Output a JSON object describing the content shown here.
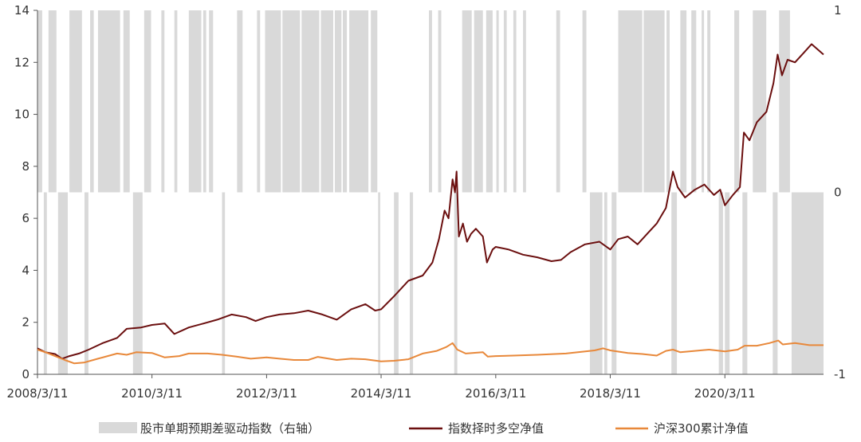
{
  "chart_data": {
    "type": "line",
    "title": "",
    "xlabel": "",
    "ylabel": "",
    "x_range": [
      "2008-03-11",
      "2021-11-30"
    ],
    "x_tick_labels": [
      "2008/3/11",
      "2010/3/11",
      "2012/3/11",
      "2014/3/11",
      "2016/3/11",
      "2018/3/11",
      "2020/3/11"
    ],
    "y_left": {
      "ylim": [
        0,
        14
      ],
      "ticks": [
        "0",
        "2",
        "4",
        "6",
        "8",
        "10",
        "12",
        "14"
      ]
    },
    "y_right": {
      "ylim": [
        -1,
        1
      ],
      "ticks": [
        "-1",
        "0",
        "1"
      ]
    },
    "grid": false,
    "legend_position": "bottom",
    "colors": {
      "signal": "#d9d9d9",
      "timing": "#6b0f0f",
      "hs300": "#e8883a"
    },
    "signal_series": {
      "name": "股市单期预期差驱动指数（右轴）",
      "type": "bar",
      "axis": "right",
      "values_note_free": true,
      "periods": [
        {
          "start": "2008-03-11",
          "end": "2008-04-10",
          "value": 1
        },
        {
          "start": "2008-04-20",
          "end": "2008-05-10",
          "value": -1
        },
        {
          "start": "2008-05-20",
          "end": "2008-07-10",
          "value": 1
        },
        {
          "start": "2008-07-20",
          "end": "2008-09-20",
          "value": -1
        },
        {
          "start": "2008-10-01",
          "end": "2008-12-20",
          "value": 1
        },
        {
          "start": "2009-01-05",
          "end": "2009-01-30",
          "value": -1
        },
        {
          "start": "2009-02-10",
          "end": "2009-03-05",
          "value": 1
        },
        {
          "start": "2009-04-01",
          "end": "2009-08-20",
          "value": 1
        },
        {
          "start": "2009-09-10",
          "end": "2009-10-20",
          "value": 1
        },
        {
          "start": "2009-11-10",
          "end": "2010-01-10",
          "value": -1
        },
        {
          "start": "2010-01-20",
          "end": "2010-03-05",
          "value": 1
        },
        {
          "start": "2010-05-10",
          "end": "2010-05-30",
          "value": 1
        },
        {
          "start": "2010-08-01",
          "end": "2010-08-20",
          "value": 1
        },
        {
          "start": "2010-11-01",
          "end": "2011-01-20",
          "value": 1
        },
        {
          "start": "2011-02-01",
          "end": "2011-02-20",
          "value": 1
        },
        {
          "start": "2011-03-10",
          "end": "2011-04-05",
          "value": 1
        },
        {
          "start": "2011-06-01",
          "end": "2011-06-20",
          "value": -1
        },
        {
          "start": "2011-09-05",
          "end": "2011-10-10",
          "value": 1
        },
        {
          "start": "2012-01-10",
          "end": "2012-01-30",
          "value": 1
        },
        {
          "start": "2012-03-01",
          "end": "2012-06-10",
          "value": 1
        },
        {
          "start": "2012-06-20",
          "end": "2012-10-10",
          "value": 1
        },
        {
          "start": "2012-10-20",
          "end": "2013-02-10",
          "value": 1
        },
        {
          "start": "2013-02-20",
          "end": "2013-05-10",
          "value": 1
        },
        {
          "start": "2013-05-20",
          "end": "2013-07-01",
          "value": 1
        },
        {
          "start": "2013-07-10",
          "end": "2013-08-05",
          "value": 1
        },
        {
          "start": "2013-08-20",
          "end": "2013-12-20",
          "value": 1
        },
        {
          "start": "2014-01-05",
          "end": "2014-02-15",
          "value": 1
        },
        {
          "start": "2014-02-20",
          "end": "2014-03-05",
          "value": -1
        },
        {
          "start": "2014-06-01",
          "end": "2014-06-30",
          "value": -1
        },
        {
          "start": "2014-09-10",
          "end": "2014-10-01",
          "value": -1
        },
        {
          "start": "2015-01-10",
          "end": "2015-01-30",
          "value": 1
        },
        {
          "start": "2015-03-10",
          "end": "2015-03-30",
          "value": 1
        },
        {
          "start": "2015-06-20",
          "end": "2015-07-10",
          "value": -1
        },
        {
          "start": "2015-08-10",
          "end": "2015-10-10",
          "value": 1
        },
        {
          "start": "2015-10-25",
          "end": "2015-12-20",
          "value": 1
        },
        {
          "start": "2016-01-10",
          "end": "2016-02-20",
          "value": 1
        },
        {
          "start": "2016-03-15",
          "end": "2016-03-30",
          "value": 1
        },
        {
          "start": "2016-05-01",
          "end": "2016-05-20",
          "value": 1
        },
        {
          "start": "2016-07-01",
          "end": "2016-07-20",
          "value": 1
        },
        {
          "start": "2016-09-01",
          "end": "2016-09-20",
          "value": 1
        },
        {
          "start": "2017-04-01",
          "end": "2017-04-25",
          "value": 1
        },
        {
          "start": "2017-09-15",
          "end": "2017-10-10",
          "value": 1
        },
        {
          "start": "2017-11-01",
          "end": "2018-01-20",
          "value": -1
        },
        {
          "start": "2018-02-01",
          "end": "2018-02-20",
          "value": -1
        },
        {
          "start": "2018-03-20",
          "end": "2018-04-20",
          "value": -1
        },
        {
          "start": "2018-05-01",
          "end": "2018-10-01",
          "value": 1
        },
        {
          "start": "2018-10-10",
          "end": "2019-02-20",
          "value": 1
        },
        {
          "start": "2019-03-05",
          "end": "2019-03-25",
          "value": 1
        },
        {
          "start": "2019-04-05",
          "end": "2019-05-10",
          "value": -1
        },
        {
          "start": "2019-06-01",
          "end": "2019-07-10",
          "value": 1
        },
        {
          "start": "2019-08-10",
          "end": "2019-09-10",
          "value": 1
        },
        {
          "start": "2019-10-15",
          "end": "2019-10-30",
          "value": 1
        },
        {
          "start": "2019-11-20",
          "end": "2019-12-10",
          "value": 1
        },
        {
          "start": "2020-02-01",
          "end": "2020-02-28",
          "value": -1
        },
        {
          "start": "2020-03-11",
          "end": "2020-04-10",
          "value": -1
        },
        {
          "start": "2020-05-10",
          "end": "2020-06-10",
          "value": 1
        },
        {
          "start": "2020-07-01",
          "end": "2020-08-01",
          "value": -1
        },
        {
          "start": "2020-09-05",
          "end": "2020-11-30",
          "value": 1
        },
        {
          "start": "2021-01-10",
          "end": "2021-02-10",
          "value": -1
        },
        {
          "start": "2021-02-20",
          "end": "2021-04-30",
          "value": 1
        },
        {
          "start": "2021-05-10",
          "end": "2021-11-30",
          "value": -1
        }
      ]
    },
    "series": [
      {
        "name": "指数择时多空净值",
        "axis": "left",
        "points": [
          [
            "2008-03-11",
            1.0
          ],
          [
            "2008-05-01",
            0.85
          ],
          [
            "2008-07-01",
            0.78
          ],
          [
            "2008-08-15",
            0.6
          ],
          [
            "2008-10-01",
            0.7
          ],
          [
            "2008-12-01",
            0.8
          ],
          [
            "2009-02-01",
            0.95
          ],
          [
            "2009-05-01",
            1.2
          ],
          [
            "2009-08-01",
            1.4
          ],
          [
            "2009-10-01",
            1.75
          ],
          [
            "2010-01-01",
            1.8
          ],
          [
            "2010-03-11",
            1.9
          ],
          [
            "2010-06-01",
            1.95
          ],
          [
            "2010-08-01",
            1.55
          ],
          [
            "2010-11-01",
            1.8
          ],
          [
            "2011-02-01",
            1.95
          ],
          [
            "2011-05-01",
            2.1
          ],
          [
            "2011-08-01",
            2.3
          ],
          [
            "2011-11-01",
            2.2
          ],
          [
            "2012-01-01",
            2.05
          ],
          [
            "2012-03-11",
            2.2
          ],
          [
            "2012-06-01",
            2.3
          ],
          [
            "2012-09-01",
            2.35
          ],
          [
            "2012-12-01",
            2.45
          ],
          [
            "2013-03-01",
            2.3
          ],
          [
            "2013-06-01",
            2.1
          ],
          [
            "2013-09-01",
            2.5
          ],
          [
            "2013-12-01",
            2.7
          ],
          [
            "2014-02-01",
            2.45
          ],
          [
            "2014-03-11",
            2.5
          ],
          [
            "2014-06-01",
            3.0
          ],
          [
            "2014-09-01",
            3.6
          ],
          [
            "2014-12-01",
            3.8
          ],
          [
            "2015-02-01",
            4.3
          ],
          [
            "2015-03-15",
            5.2
          ],
          [
            "2015-04-20",
            6.3
          ],
          [
            "2015-05-15",
            6.0
          ],
          [
            "2015-06-10",
            7.5
          ],
          [
            "2015-06-25",
            7.0
          ],
          [
            "2015-07-05",
            7.8
          ],
          [
            "2015-07-20",
            5.3
          ],
          [
            "2015-08-15",
            5.8
          ],
          [
            "2015-09-10",
            5.1
          ],
          [
            "2015-10-05",
            5.4
          ],
          [
            "2015-11-05",
            5.6
          ],
          [
            "2015-12-20",
            5.3
          ],
          [
            "2016-01-15",
            4.3
          ],
          [
            "2016-02-20",
            4.8
          ],
          [
            "2016-03-11",
            4.9
          ],
          [
            "2016-06-01",
            4.8
          ],
          [
            "2016-09-01",
            4.6
          ],
          [
            "2016-12-01",
            4.5
          ],
          [
            "2017-03-01",
            4.35
          ],
          [
            "2017-05-01",
            4.4
          ],
          [
            "2017-07-01",
            4.7
          ],
          [
            "2017-10-01",
            5.0
          ],
          [
            "2018-01-01",
            5.1
          ],
          [
            "2018-03-11",
            4.8
          ],
          [
            "2018-05-01",
            5.2
          ],
          [
            "2018-07-01",
            5.3
          ],
          [
            "2018-09-01",
            5.0
          ],
          [
            "2018-11-01",
            5.4
          ],
          [
            "2019-01-01",
            5.8
          ],
          [
            "2019-03-01",
            6.4
          ],
          [
            "2019-04-15",
            7.8
          ],
          [
            "2019-05-15",
            7.2
          ],
          [
            "2019-07-01",
            6.8
          ],
          [
            "2019-09-01",
            7.1
          ],
          [
            "2019-11-01",
            7.3
          ],
          [
            "2020-01-01",
            6.9
          ],
          [
            "2020-02-10",
            7.1
          ],
          [
            "2020-03-11",
            6.5
          ],
          [
            "2020-05-01",
            6.9
          ],
          [
            "2020-06-15",
            7.2
          ],
          [
            "2020-07-10",
            9.3
          ],
          [
            "2020-08-15",
            9.0
          ],
          [
            "2020-10-01",
            9.7
          ],
          [
            "2020-12-01",
            10.1
          ],
          [
            "2021-01-15",
            11.2
          ],
          [
            "2021-02-10",
            12.3
          ],
          [
            "2021-03-10",
            11.5
          ],
          [
            "2021-04-15",
            12.1
          ],
          [
            "2021-06-01",
            12.0
          ],
          [
            "2021-08-01",
            12.4
          ],
          [
            "2021-09-15",
            12.7
          ],
          [
            "2021-11-30",
            12.3
          ]
        ]
      },
      {
        "name": "沪深300累计净值",
        "axis": "left",
        "points": [
          [
            "2008-03-11",
            0.95
          ],
          [
            "2008-05-01",
            0.85
          ],
          [
            "2008-07-01",
            0.7
          ],
          [
            "2008-09-01",
            0.55
          ],
          [
            "2008-11-01",
            0.42
          ],
          [
            "2009-01-01",
            0.45
          ],
          [
            "2009-04-01",
            0.6
          ],
          [
            "2009-08-01",
            0.8
          ],
          [
            "2009-10-01",
            0.75
          ],
          [
            "2009-12-01",
            0.85
          ],
          [
            "2010-03-11",
            0.82
          ],
          [
            "2010-06-01",
            0.65
          ],
          [
            "2010-09-01",
            0.7
          ],
          [
            "2010-11-01",
            0.8
          ],
          [
            "2011-03-01",
            0.8
          ],
          [
            "2011-06-01",
            0.75
          ],
          [
            "2011-09-01",
            0.68
          ],
          [
            "2011-12-01",
            0.6
          ],
          [
            "2012-03-11",
            0.65
          ],
          [
            "2012-06-01",
            0.6
          ],
          [
            "2012-09-01",
            0.55
          ],
          [
            "2012-12-01",
            0.55
          ],
          [
            "2013-02-01",
            0.67
          ],
          [
            "2013-06-01",
            0.55
          ],
          [
            "2013-09-01",
            0.6
          ],
          [
            "2013-12-01",
            0.58
          ],
          [
            "2014-03-11",
            0.5
          ],
          [
            "2014-06-01",
            0.52
          ],
          [
            "2014-09-01",
            0.58
          ],
          [
            "2014-12-01",
            0.8
          ],
          [
            "2015-03-01",
            0.9
          ],
          [
            "2015-05-01",
            1.05
          ],
          [
            "2015-06-10",
            1.2
          ],
          [
            "2015-07-10",
            0.95
          ],
          [
            "2015-09-01",
            0.8
          ],
          [
            "2015-12-20",
            0.85
          ],
          [
            "2016-01-20",
            0.68
          ],
          [
            "2016-03-11",
            0.7
          ],
          [
            "2016-07-01",
            0.72
          ],
          [
            "2016-12-01",
            0.75
          ],
          [
            "2017-06-01",
            0.8
          ],
          [
            "2017-12-01",
            0.92
          ],
          [
            "2018-01-25",
            1.0
          ],
          [
            "2018-03-11",
            0.92
          ],
          [
            "2018-07-01",
            0.82
          ],
          [
            "2018-10-01",
            0.78
          ],
          [
            "2019-01-01",
            0.72
          ],
          [
            "2019-03-01",
            0.9
          ],
          [
            "2019-04-15",
            0.95
          ],
          [
            "2019-06-01",
            0.85
          ],
          [
            "2019-09-01",
            0.9
          ],
          [
            "2019-12-01",
            0.95
          ],
          [
            "2020-03-11",
            0.88
          ],
          [
            "2020-06-01",
            0.95
          ],
          [
            "2020-07-15",
            1.1
          ],
          [
            "2020-10-01",
            1.1
          ],
          [
            "2020-12-20",
            1.2
          ],
          [
            "2021-02-15",
            1.3
          ],
          [
            "2021-03-15",
            1.15
          ],
          [
            "2021-06-01",
            1.2
          ],
          [
            "2021-09-01",
            1.12
          ],
          [
            "2021-11-30",
            1.12
          ]
        ]
      }
    ]
  }
}
